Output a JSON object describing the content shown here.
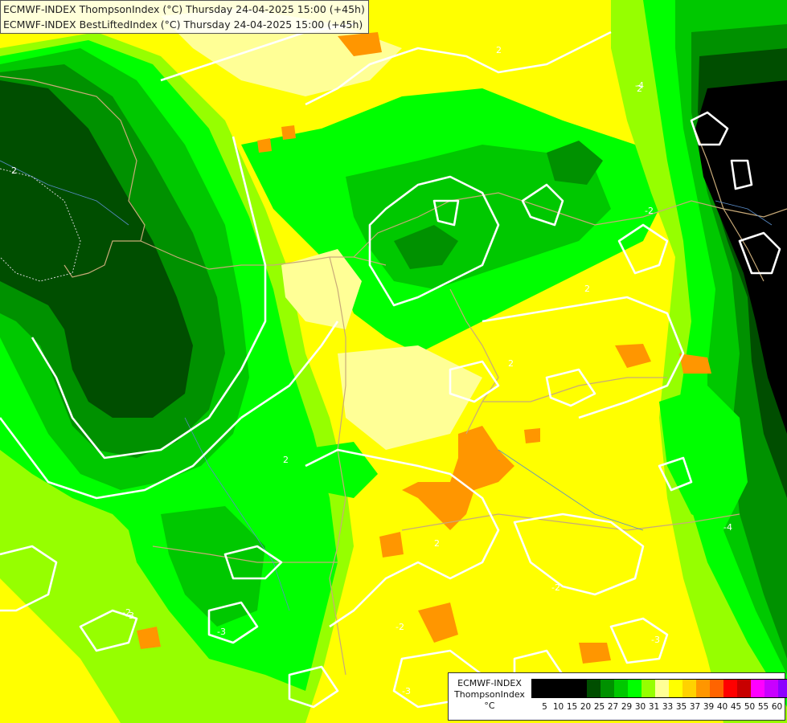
{
  "title": {
    "line1": "ECMWF-INDEX ThompsonIndex (°C) Thursday 24-04-2025 15:00 (+45h)",
    "line2": "ECMWF-INDEX BestLiftedIndex (°C) Thursday 24-04-2025 15:00 (+45h)"
  },
  "legend": {
    "model": "ECMWF-INDEX",
    "parameter": "ThompsonIndex",
    "unit": "°C",
    "ticks": [
      "5",
      "10",
      "15",
      "20",
      "25",
      "27",
      "29",
      "30",
      "31",
      "33",
      "35",
      "37",
      "39",
      "40",
      "45",
      "50",
      "55",
      "60"
    ],
    "colors": [
      "#000000",
      "#000000",
      "#000000",
      "#000000",
      "#004e00",
      "#009100",
      "#00c800",
      "#00ff00",
      "#96ff00",
      "#ffff96",
      "#ffff00",
      "#ffd200",
      "#ff9600",
      "#ff6400",
      "#ff0000",
      "#c80000",
      "#ff00ff",
      "#c800ff",
      "#8c00ff",
      "#5000ff",
      "#0000ff"
    ]
  },
  "map": {
    "contour_labels": [
      "2",
      "2",
      "2",
      "2",
      "2",
      "2",
      "2",
      "-2",
      "-2",
      "-2",
      "-2",
      "-3",
      "-3",
      "-3",
      "-3",
      "-4",
      "-4"
    ],
    "palette": {
      "yellow": "#ffff00",
      "pale_yellow": "#ffff96",
      "lime": "#96ff00",
      "green": "#00ff00",
      "mid_green": "#00c800",
      "dark_green": "#009100",
      "deep_green": "#004e00",
      "black": "#000000",
      "orange": "#ff9600",
      "light_orange": "#ffd200"
    }
  }
}
